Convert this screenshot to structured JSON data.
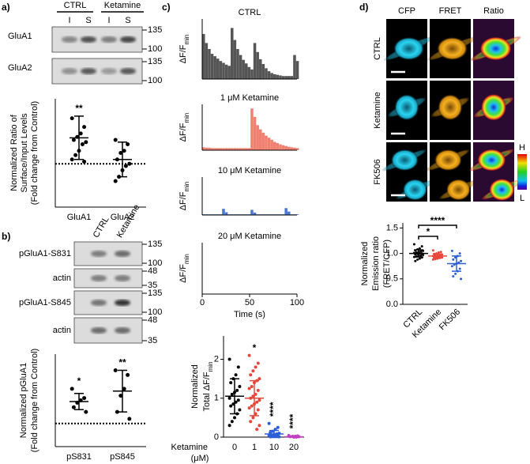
{
  "panel_labels": [
    "a)",
    "b)",
    "c)",
    "d)"
  ],
  "blot_a": {
    "groups": [
      "CTRL",
      "Ketamine"
    ],
    "lanes": [
      "I",
      "S",
      "I",
      "S"
    ],
    "rows": [
      {
        "name": "GluA1",
        "markers": [
          135,
          100
        ]
      },
      {
        "name": "GluA2",
        "markers": [
          135,
          100
        ]
      }
    ]
  },
  "blot_b": {
    "lanes": [
      "CTRL",
      "Ketamine"
    ],
    "rows": [
      {
        "name": "pGluA1-S831",
        "markers": [
          135,
          100
        ]
      },
      {
        "name": "actin",
        "markers": [
          48,
          35
        ]
      },
      {
        "name": "pGluA1-S845",
        "markers": [
          135,
          100
        ]
      },
      {
        "name": "actin",
        "markers": [
          48,
          35
        ]
      }
    ]
  },
  "images": {
    "columns": [
      "CFP",
      "FRET",
      "Ratio"
    ],
    "rows": [
      "CTRL",
      "Ketamine",
      "FK506"
    ],
    "colorbar": [
      "H",
      "L"
    ]
  },
  "chart_data": [
    {
      "type": "dotplot",
      "ylabel": [
        "Normalized Ratio of",
        "Surface/Input Levels",
        "(Fold change from Control)"
      ],
      "categories": [
        "GluA1",
        "GluA2"
      ],
      "color": "#000000",
      "ylim": [
        0,
        2.5
      ],
      "reference_line": 1,
      "groups": [
        {
          "points": [
            2.05,
            1.85,
            1.7,
            1.62,
            1.55,
            1.5,
            1.45,
            1.3,
            1.2,
            1.1,
            1.05
          ],
          "mean": 1.6,
          "sd": 0.5
        },
        {
          "points": [
            1.55,
            1.45,
            1.3,
            1.25,
            1.1,
            1.0,
            0.95,
            0.85,
            0.7,
            0.6
          ],
          "mean": 1.1,
          "sd": 0.4
        }
      ],
      "annotations": [
        "**",
        null
      ]
    },
    {
      "type": "dotplot",
      "ylabel": [
        "Normalized pGluA1",
        "(Fold change from Control)"
      ],
      "categories": [
        "pS831",
        "pS845"
      ],
      "color": "#000000",
      "ylim": [
        0,
        4
      ],
      "reference_line": 1,
      "groups": [
        {
          "points": [
            2.5,
            2.1,
            2.0,
            1.9,
            1.7,
            1.5
          ],
          "mean": 1.95,
          "sd": 0.35
        },
        {
          "points": [
            3.3,
            3.1,
            2.5,
            2.2,
            1.5,
            1.2
          ],
          "mean": 2.4,
          "sd": 0.9
        }
      ],
      "annotations": [
        "*",
        "**"
      ]
    },
    {
      "type": "bar",
      "title": "CTRL",
      "ylabel": {
        "text": "ΔF/F",
        "subscript": "min"
      },
      "color": "#555555",
      "xlim": [
        0,
        100
      ],
      "ylim": [
        0,
        1
      ],
      "x": [
        0,
        3,
        6,
        9,
        12,
        15,
        18,
        21,
        24,
        27,
        30,
        33,
        36,
        39,
        42,
        45,
        48,
        51,
        54,
        57,
        60,
        63,
        66,
        69,
        72,
        75,
        78,
        81,
        84,
        87,
        90,
        93,
        96,
        99
      ],
      "values": [
        0.75,
        0.6,
        0.5,
        0.42,
        0.38,
        0.34,
        0.3,
        0.27,
        0.24,
        0.22,
        0.85,
        0.65,
        0.5,
        0.4,
        0.32,
        0.26,
        0.2,
        0.16,
        0.6,
        0.45,
        0.33,
        0.25,
        0.18,
        0.13,
        0.1,
        0.08,
        0.07,
        0.06,
        0.05,
        0.05,
        0.05,
        0.05,
        0.4,
        0.3
      ]
    },
    {
      "type": "bar",
      "title": "1 μM Ketamine",
      "ylabel": {
        "text": "ΔF/F",
        "subscript": "min"
      },
      "color": "#f08070",
      "xlim": [
        0,
        100
      ],
      "ylim": [
        0,
        1.1
      ],
      "x": [
        0,
        3,
        6,
        9,
        12,
        15,
        18,
        21,
        24,
        27,
        30,
        33,
        36,
        39,
        42,
        45,
        48,
        51,
        54,
        57,
        60,
        63,
        66,
        69,
        72,
        75,
        78,
        81,
        84,
        87,
        90,
        93,
        96,
        99
      ],
      "values": [
        0.07,
        0.06,
        0.06,
        0.05,
        0.05,
        0.05,
        0.05,
        0.05,
        0.05,
        0.05,
        0.05,
        0.05,
        0.05,
        0.05,
        0.05,
        0.05,
        0.05,
        1.0,
        0.8,
        0.6,
        0.5,
        0.42,
        0.35,
        0.3,
        0.25,
        0.2,
        0.17,
        0.14,
        0.12,
        0.1,
        0.08,
        0.07,
        0.06,
        0.05
      ]
    },
    {
      "type": "bar",
      "title": "10 μM Ketamine",
      "ylabel": {
        "text": "ΔF/F",
        "subscript": "min"
      },
      "color": "#4a78d4",
      "xlim": [
        0,
        100
      ],
      "ylim": [
        0,
        1.1
      ],
      "x": [
        0,
        3,
        6,
        9,
        12,
        15,
        18,
        21,
        24,
        27,
        30,
        33,
        36,
        39,
        42,
        45,
        48,
        51,
        54,
        57,
        60,
        63,
        66,
        69,
        72,
        75,
        78,
        81,
        84,
        87,
        90,
        93,
        96,
        99
      ],
      "values": [
        0.02,
        0.02,
        0.02,
        0.02,
        0.02,
        0.02,
        0.02,
        0.18,
        0.08,
        0.02,
        0.02,
        0.02,
        0.02,
        0.02,
        0.02,
        0.02,
        0.02,
        0.15,
        0.07,
        0.02,
        0.02,
        0.02,
        0.02,
        0.02,
        0.02,
        0.02,
        0.02,
        0.02,
        0.02,
        0.2,
        0.1,
        0.02,
        0.02,
        0.02
      ]
    },
    {
      "type": "bar",
      "title": "20 μM Ketamine",
      "ylabel": {
        "text": "ΔF/F",
        "subscript": "min"
      },
      "color": "#c040c0",
      "xlim": [
        0,
        100
      ],
      "ylim": [
        0,
        1.1
      ],
      "xticks": [
        0,
        50,
        100
      ],
      "xlabel": "Time (s)",
      "x": [
        0,
        3,
        6,
        9,
        12,
        15,
        18,
        21,
        24,
        27,
        30,
        33,
        36,
        39,
        42,
        45,
        48,
        51,
        54,
        57,
        60,
        63,
        66,
        69,
        72,
        75,
        78,
        81,
        84,
        87,
        90,
        93,
        96,
        99
      ],
      "values": [
        0,
        0,
        0,
        0,
        0,
        0,
        0,
        0,
        0,
        0,
        0,
        0,
        0,
        0,
        0,
        0,
        0,
        0,
        0,
        0,
        0,
        0,
        0,
        0,
        0,
        0,
        0,
        0,
        0,
        0,
        0,
        0,
        0,
        0
      ]
    },
    {
      "type": "dotplot",
      "ylabel": [
        "Normalized",
        {
          "text": "Total ΔF/F",
          "subscript": "min"
        }
      ],
      "xlabel": [
        "Ketamine",
        "(μM)"
      ],
      "categories": [
        "0",
        "1",
        "10",
        "20"
      ],
      "colors": [
        "#000000",
        "#e8463a",
        "#2c5fd8",
        "#c040c0"
      ],
      "ylim": [
        0,
        2.6
      ],
      "yticks": [
        0,
        1,
        2
      ],
      "groups": [
        {
          "points": [
            2.0,
            1.8,
            1.6,
            1.5,
            1.4,
            1.3,
            1.2,
            1.15,
            1.1,
            1.0,
            0.95,
            0.9,
            0.85,
            0.8,
            0.7,
            0.6,
            0.5,
            0.4,
            0.3
          ],
          "mean": 1.05,
          "sd": 0.45
        },
        {
          "points": [
            2.1,
            1.9,
            1.8,
            1.7,
            1.6,
            1.5,
            1.45,
            1.4,
            1.3,
            1.25,
            1.2,
            1.1,
            1.05,
            1.0,
            0.95,
            0.9,
            0.85,
            0.8,
            0.75,
            0.7,
            0.6,
            0.5,
            0.4,
            0.3,
            0.2
          ],
          "mean": 1.0,
          "sd": 0.45
        },
        {
          "points": [
            0.35,
            0.25,
            0.2,
            0.15,
            0.12,
            0.1,
            0.08,
            0.06,
            0.05,
            0.04,
            0.03,
            0.02,
            0.02,
            0.01,
            0.01
          ],
          "mean": 0.08,
          "sd": 0.09
        },
        {
          "points": [
            0.04,
            0.03,
            0.02,
            0.02,
            0.01,
            0.01,
            0,
            0
          ],
          "mean": 0.01,
          "sd": 0.01
        }
      ],
      "annotations": [
        null,
        "*",
        "****",
        "****"
      ]
    },
    {
      "type": "dotplot",
      "ylabel": [
        "Normalized",
        "Emission ratio",
        "(FRET/CFP)"
      ],
      "categories": [
        "CTRL",
        "Ketamine",
        "FK506"
      ],
      "colors": [
        "#000000",
        "#e8463a",
        "#2c5fd8"
      ],
      "ylim": [
        0,
        1.6
      ],
      "yticks": [
        {
          "value": 0,
          "label": "0.0"
        },
        {
          "value": 0.5,
          "label": "0.5"
        },
        {
          "value": 1,
          "label": "1.0"
        },
        {
          "value": 1.5,
          "label": "1.5"
        }
      ],
      "groups": [
        {
          "points": [
            1.18,
            1.14,
            1.1,
            1.08,
            1.06,
            1.05,
            1.04,
            1.03,
            1.02,
            1.01,
            1.0,
            1.0,
            0.99,
            0.98,
            0.97,
            0.96,
            0.95,
            0.94,
            0.93,
            0.92,
            0.9,
            0.88,
            0.85
          ],
          "mean": 1.0,
          "sd": 0.07
        },
        {
          "points": [
            1.06,
            1.03,
            1.02,
            1.0,
            0.99,
            0.98,
            0.97,
            0.96,
            0.96,
            0.95,
            0.95,
            0.94,
            0.93,
            0.93,
            0.92,
            0.91,
            0.9,
            0.89,
            0.88
          ],
          "mean": 0.95,
          "sd": 0.04
        },
        {
          "points": [
            1.05,
            1.0,
            0.95,
            0.92,
            0.88,
            0.85,
            0.82,
            0.8,
            0.78,
            0.75,
            0.7,
            0.65,
            0.6,
            0.55,
            0.5
          ],
          "mean": 0.8,
          "sd": 0.15
        }
      ],
      "brackets": [
        {
          "between": [
            "CTRL",
            "Ketamine"
          ],
          "label": "*"
        },
        {
          "between": [
            "CTRL",
            "FK506"
          ],
          "label": "****"
        }
      ]
    }
  ]
}
